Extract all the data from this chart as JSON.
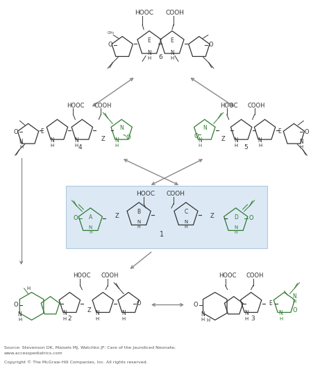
{
  "bg_color": "#ffffff",
  "highlight_box_color": "#dce9f5",
  "highlight_box_edge": "#b0c8e0",
  "sc": "#2d7a2d",
  "dc": "#333333",
  "gc": "#888888",
  "source_line1": "Source: Stevenson DK, Maisels MJ, Watchko JF: Care of the Jaundiced Neonate;",
  "source_line2": "www.accesspediatrics.com",
  "copyright": "Copyright © The McGraw-Hill Companies, Inc. All rights reserved.",
  "fig_w": 4.74,
  "fig_h": 5.35,
  "dpi": 100
}
